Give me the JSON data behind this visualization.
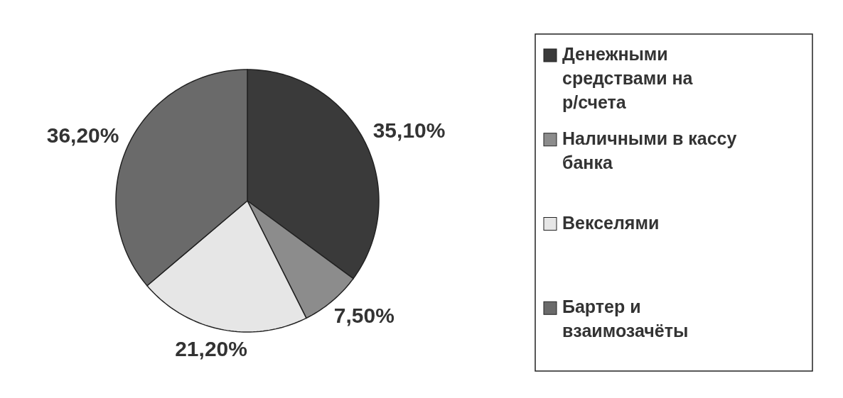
{
  "chart_data": {
    "type": "pie",
    "categories": [
      "Денежными средствами на р/счета",
      "Наличными в кассу банка",
      "Векселями",
      "Бартер и взаимозачёты"
    ],
    "values": [
      35.1,
      7.5,
      21.2,
      36.2
    ],
    "value_labels": [
      "35,10%",
      "7,50%",
      "21,20%",
      "36,20%"
    ],
    "colors": [
      "#3a3a3a",
      "#8c8c8c",
      "#e6e6e6",
      "#6a6a6a"
    ],
    "legend": "right"
  }
}
